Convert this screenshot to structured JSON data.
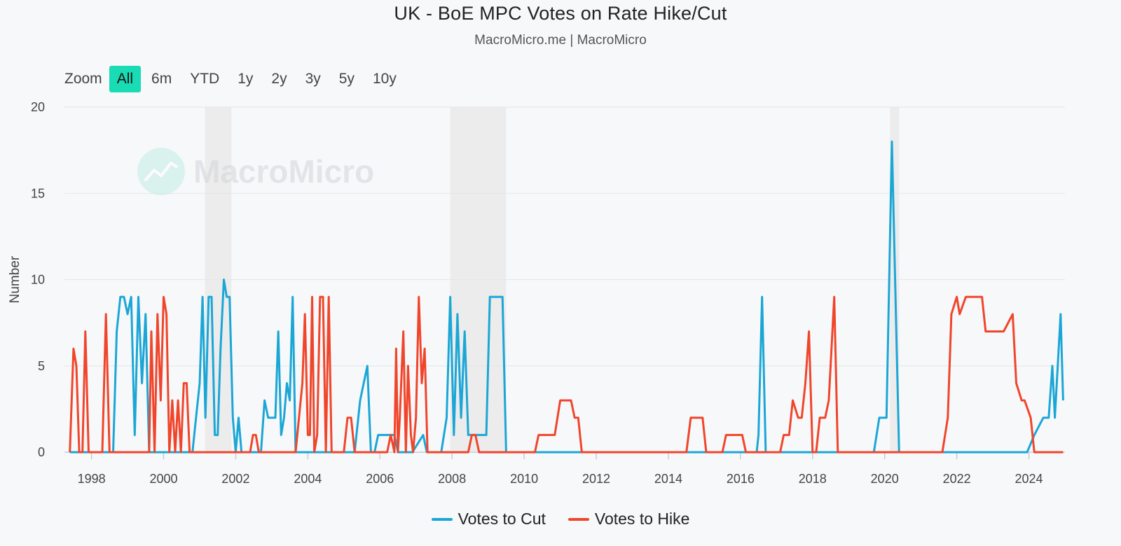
{
  "header": {
    "title": "UK - BoE MPC Votes on Rate Hike/Cut",
    "subtitle": "MacroMicro.me | MacroMicro"
  },
  "zoom": {
    "label": "Zoom",
    "buttons": [
      "All",
      "6m",
      "YTD",
      "1y",
      "2y",
      "3y",
      "5y",
      "10y"
    ],
    "active": "All"
  },
  "watermark": {
    "text": "MacroMicro"
  },
  "colors": {
    "cut": "#1ba6d6",
    "hike": "#f0452b",
    "accent": "#19dbb4",
    "recession": "#ececec",
    "grid": "#e4e5e8"
  },
  "chart_data": {
    "type": "line",
    "title": "UK - BoE MPC Votes on Rate Hike/Cut",
    "subtitle": "MacroMicro.me | MacroMicro",
    "xlabel": "",
    "ylabel": "Number",
    "xlim": [
      1997.25,
      2025.0
    ],
    "ylim": [
      0,
      20
    ],
    "yticks": [
      0,
      5,
      10,
      15,
      20
    ],
    "xticks": [
      1998,
      2000,
      2002,
      2004,
      2006,
      2008,
      2010,
      2012,
      2014,
      2016,
      2018,
      2020,
      2022,
      2024
    ],
    "grid": true,
    "legend_position": "bottom-center",
    "shaded_periods": [
      [
        2001.15,
        2001.88
      ],
      [
        2007.95,
        2009.5
      ],
      [
        2020.15,
        2020.4
      ]
    ],
    "series": [
      {
        "name": "Votes to Cut",
        "color": "#1ba6d6",
        "points": [
          [
            1997.4,
            0
          ],
          [
            1998.6,
            0
          ],
          [
            1998.7,
            7
          ],
          [
            1998.8,
            9
          ],
          [
            1998.9,
            9
          ],
          [
            1999.0,
            8
          ],
          [
            1999.1,
            9
          ],
          [
            1999.2,
            1
          ],
          [
            1999.3,
            9
          ],
          [
            1999.4,
            4
          ],
          [
            1999.5,
            8
          ],
          [
            1999.6,
            0
          ],
          [
            2000.8,
            0
          ],
          [
            2000.9,
            2
          ],
          [
            2001.0,
            4
          ],
          [
            2001.08,
            9
          ],
          [
            2001.16,
            2
          ],
          [
            2001.25,
            9
          ],
          [
            2001.33,
            9
          ],
          [
            2001.42,
            1
          ],
          [
            2001.5,
            1
          ],
          [
            2001.58,
            6
          ],
          [
            2001.67,
            10
          ],
          [
            2001.75,
            9
          ],
          [
            2001.83,
            9
          ],
          [
            2001.92,
            2
          ],
          [
            2002.0,
            0
          ],
          [
            2002.08,
            2
          ],
          [
            2002.16,
            0
          ],
          [
            2002.7,
            0
          ],
          [
            2002.8,
            3
          ],
          [
            2002.9,
            2
          ],
          [
            2003.1,
            2
          ],
          [
            2003.18,
            7
          ],
          [
            2003.26,
            1
          ],
          [
            2003.34,
            2
          ],
          [
            2003.42,
            4
          ],
          [
            2003.5,
            3
          ],
          [
            2003.58,
            9
          ],
          [
            2003.66,
            0
          ],
          [
            2005.3,
            0
          ],
          [
            2005.45,
            3
          ],
          [
            2005.55,
            4
          ],
          [
            2005.65,
            5
          ],
          [
            2005.75,
            0
          ],
          [
            2005.85,
            0
          ],
          [
            2005.95,
            1
          ],
          [
            2006.4,
            1
          ],
          [
            2006.5,
            0
          ],
          [
            2006.9,
            0
          ],
          [
            2007.2,
            1
          ],
          [
            2007.3,
            0
          ],
          [
            2007.7,
            0
          ],
          [
            2007.85,
            2
          ],
          [
            2007.95,
            9
          ],
          [
            2008.05,
            1
          ],
          [
            2008.15,
            8
          ],
          [
            2008.25,
            2
          ],
          [
            2008.35,
            7
          ],
          [
            2008.45,
            1
          ],
          [
            2008.95,
            1
          ],
          [
            2009.05,
            9
          ],
          [
            2009.4,
            9
          ],
          [
            2009.5,
            0
          ],
          [
            2016.45,
            0
          ],
          [
            2016.5,
            1
          ],
          [
            2016.6,
            9
          ],
          [
            2016.7,
            0
          ],
          [
            2019.7,
            0
          ],
          [
            2019.85,
            2
          ],
          [
            2020.05,
            2
          ],
          [
            2020.2,
            18
          ],
          [
            2020.4,
            0
          ],
          [
            2023.95,
            0
          ],
          [
            2024.15,
            1
          ],
          [
            2024.4,
            2
          ],
          [
            2024.55,
            2
          ],
          [
            2024.65,
            5
          ],
          [
            2024.72,
            2
          ],
          [
            2024.8,
            5
          ],
          [
            2024.88,
            8
          ],
          [
            2024.95,
            3
          ]
        ]
      },
      {
        "name": "Votes to Hike",
        "color": "#f0452b",
        "points": [
          [
            1997.4,
            0
          ],
          [
            1997.5,
            6
          ],
          [
            1997.58,
            5
          ],
          [
            1997.66,
            0
          ],
          [
            1997.75,
            0
          ],
          [
            1997.83,
            7
          ],
          [
            1997.92,
            0
          ],
          [
            1998.3,
            0
          ],
          [
            1998.4,
            8
          ],
          [
            1998.5,
            0
          ],
          [
            1999.5,
            0
          ],
          [
            1999.6,
            0
          ],
          [
            1999.66,
            7
          ],
          [
            1999.75,
            0
          ],
          [
            1999.83,
            8
          ],
          [
            1999.92,
            3
          ],
          [
            2000.0,
            9
          ],
          [
            2000.08,
            8
          ],
          [
            2000.16,
            0
          ],
          [
            2000.24,
            3
          ],
          [
            2000.32,
            0
          ],
          [
            2000.4,
            3
          ],
          [
            2000.48,
            0
          ],
          [
            2000.56,
            4
          ],
          [
            2000.64,
            4
          ],
          [
            2000.72,
            0
          ],
          [
            2002.4,
            0
          ],
          [
            2002.48,
            1
          ],
          [
            2002.56,
            1
          ],
          [
            2002.64,
            0
          ],
          [
            2003.66,
            0
          ],
          [
            2003.85,
            4
          ],
          [
            2003.92,
            8
          ],
          [
            2004.0,
            1
          ],
          [
            2004.06,
            1
          ],
          [
            2004.12,
            9
          ],
          [
            2004.18,
            0
          ],
          [
            2004.26,
            1
          ],
          [
            2004.34,
            9
          ],
          [
            2004.42,
            9
          ],
          [
            2004.5,
            0
          ],
          [
            2004.58,
            9
          ],
          [
            2004.66,
            0
          ],
          [
            2005.0,
            0
          ],
          [
            2005.1,
            2
          ],
          [
            2005.2,
            2
          ],
          [
            2005.3,
            0
          ],
          [
            2006.2,
            0
          ],
          [
            2006.3,
            1
          ],
          [
            2006.4,
            0
          ],
          [
            2006.45,
            6
          ],
          [
            2006.5,
            0
          ],
          [
            2006.55,
            2
          ],
          [
            2006.65,
            7
          ],
          [
            2006.72,
            0
          ],
          [
            2006.78,
            5
          ],
          [
            2006.86,
            1
          ],
          [
            2006.92,
            0
          ],
          [
            2007.0,
            2
          ],
          [
            2007.08,
            9
          ],
          [
            2007.16,
            4
          ],
          [
            2007.24,
            6
          ],
          [
            2007.32,
            0
          ],
          [
            2008.45,
            0
          ],
          [
            2008.55,
            1
          ],
          [
            2008.65,
            1
          ],
          [
            2008.75,
            0
          ],
          [
            2010.3,
            0
          ],
          [
            2010.4,
            1
          ],
          [
            2010.85,
            1
          ],
          [
            2011.0,
            3
          ],
          [
            2011.3,
            3
          ],
          [
            2011.4,
            2
          ],
          [
            2011.5,
            2
          ],
          [
            2011.6,
            0
          ],
          [
            2014.5,
            0
          ],
          [
            2014.62,
            2
          ],
          [
            2014.95,
            2
          ],
          [
            2015.05,
            0
          ],
          [
            2015.5,
            0
          ],
          [
            2015.6,
            1
          ],
          [
            2016.05,
            1
          ],
          [
            2016.15,
            0
          ],
          [
            2017.1,
            0
          ],
          [
            2017.2,
            1
          ],
          [
            2017.35,
            1
          ],
          [
            2017.45,
            3
          ],
          [
            2017.6,
            2
          ],
          [
            2017.7,
            2
          ],
          [
            2017.8,
            4
          ],
          [
            2017.9,
            7
          ],
          [
            2018.0,
            0
          ],
          [
            2018.1,
            0
          ],
          [
            2018.2,
            2
          ],
          [
            2018.35,
            2
          ],
          [
            2018.45,
            3
          ],
          [
            2018.6,
            9
          ],
          [
            2018.7,
            0
          ],
          [
            2021.6,
            0
          ],
          [
            2021.75,
            2
          ],
          [
            2021.85,
            8
          ],
          [
            2022.0,
            9
          ],
          [
            2022.08,
            8
          ],
          [
            2022.25,
            9
          ],
          [
            2022.7,
            9
          ],
          [
            2022.8,
            7
          ],
          [
            2023.3,
            7
          ],
          [
            2023.55,
            8
          ],
          [
            2023.65,
            4
          ],
          [
            2023.8,
            3
          ],
          [
            2023.88,
            3
          ],
          [
            2024.05,
            2
          ],
          [
            2024.15,
            0
          ],
          [
            2024.95,
            0
          ]
        ]
      }
    ]
  }
}
